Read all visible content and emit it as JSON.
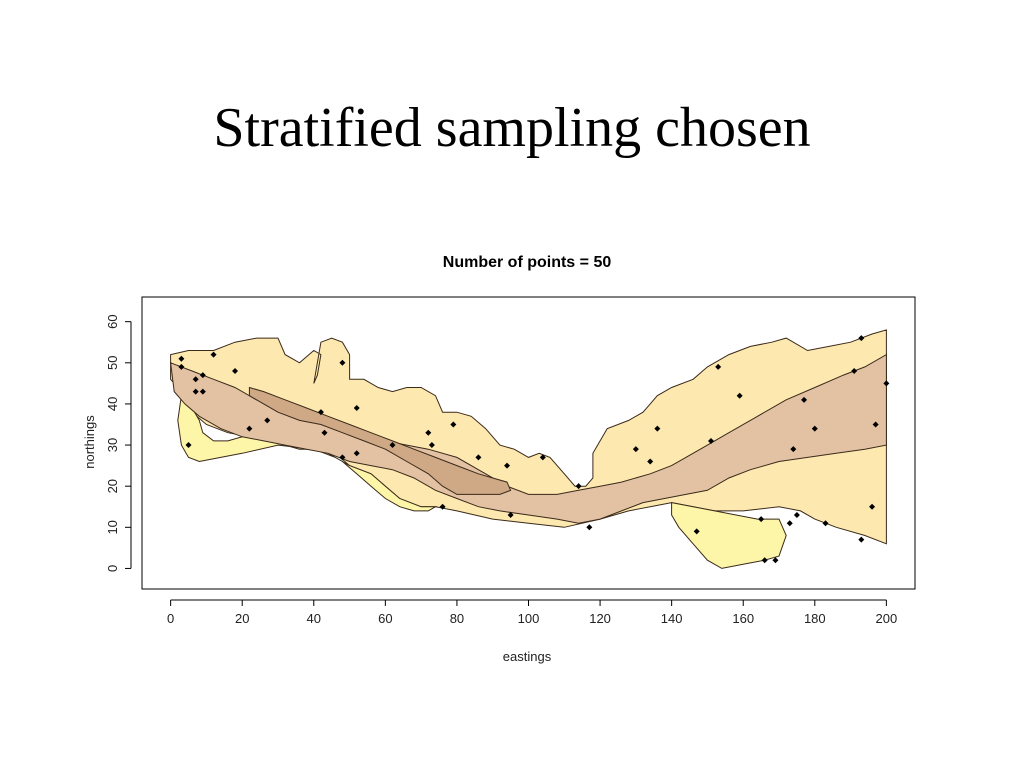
{
  "slide": {
    "title": "Stratified sampling chosen"
  },
  "colors": {
    "stratum_outer": "#fde9b0",
    "stratum_low": "#fdf5a8",
    "stratum_mid": "#e3c2a3",
    "stratum_core": "#cfa886",
    "point": "#000000"
  },
  "chart_data": {
    "type": "scatter",
    "title": "Number of points =  50",
    "xlabel": "eastings",
    "ylabel": "northings",
    "xlim": [
      -8,
      208
    ],
    "ylim": [
      -5,
      66
    ],
    "x_ticks": [
      0,
      20,
      40,
      60,
      80,
      100,
      120,
      140,
      160,
      180,
      200
    ],
    "y_ticks": [
      0,
      10,
      20,
      30,
      40,
      50,
      60
    ],
    "grid": false,
    "strata": [
      {
        "name": "outer",
        "color_key": "stratum_outer",
        "polygon": [
          [
            0,
            52
          ],
          [
            5,
            53
          ],
          [
            12,
            53
          ],
          [
            18,
            55
          ],
          [
            24,
            56
          ],
          [
            30,
            56
          ],
          [
            32,
            52
          ],
          [
            36,
            50
          ],
          [
            40,
            53
          ],
          [
            42,
            52
          ],
          [
            41,
            47
          ],
          [
            40,
            45
          ],
          [
            40,
            45
          ],
          [
            42,
            55
          ],
          [
            45,
            56
          ],
          [
            48,
            55
          ],
          [
            50,
            52
          ],
          [
            50,
            46
          ],
          [
            54,
            46
          ],
          [
            58,
            44
          ],
          [
            62,
            43
          ],
          [
            66,
            44
          ],
          [
            70,
            44
          ],
          [
            74,
            42
          ],
          [
            76,
            38
          ],
          [
            80,
            38
          ],
          [
            84,
            37
          ],
          [
            88,
            34
          ],
          [
            92,
            30
          ],
          [
            96,
            29
          ],
          [
            100,
            27
          ],
          [
            103,
            28
          ],
          [
            106,
            27
          ],
          [
            110,
            23
          ],
          [
            113,
            20
          ],
          [
            116,
            20
          ],
          [
            118,
            22
          ],
          [
            118,
            28
          ],
          [
            122,
            34
          ],
          [
            128,
            36
          ],
          [
            132,
            38
          ],
          [
            134,
            40
          ],
          [
            136,
            42
          ],
          [
            140,
            44
          ],
          [
            146,
            46
          ],
          [
            150,
            49
          ],
          [
            156,
            52
          ],
          [
            162,
            54
          ],
          [
            168,
            55
          ],
          [
            172,
            56
          ],
          [
            178,
            53
          ],
          [
            184,
            54
          ],
          [
            190,
            55
          ],
          [
            196,
            57
          ],
          [
            200,
            58
          ],
          [
            200,
            6
          ],
          [
            194,
            8
          ],
          [
            186,
            10
          ],
          [
            180,
            12
          ],
          [
            176,
            14
          ],
          [
            170,
            15
          ],
          [
            160,
            14
          ],
          [
            152,
            14
          ],
          [
            146,
            15
          ],
          [
            140,
            16
          ],
          [
            134,
            15
          ],
          [
            128,
            14
          ],
          [
            120,
            12
          ],
          [
            110,
            10
          ],
          [
            100,
            11
          ],
          [
            90,
            12
          ],
          [
            80,
            14
          ],
          [
            74,
            15
          ],
          [
            68,
            15
          ],
          [
            64,
            17
          ],
          [
            60,
            20
          ],
          [
            56,
            23
          ],
          [
            50,
            25
          ],
          [
            46,
            28
          ],
          [
            40,
            30
          ],
          [
            34,
            31
          ],
          [
            28,
            32
          ],
          [
            22,
            32
          ],
          [
            16,
            33
          ],
          [
            10,
            35
          ],
          [
            6,
            38
          ],
          [
            4,
            42
          ],
          [
            2,
            44
          ],
          [
            0,
            46
          ]
        ]
      },
      {
        "name": "low",
        "color_key": "stratum_low",
        "polygon": [
          [
            3,
            42
          ],
          [
            6,
            39
          ],
          [
            8,
            36
          ],
          [
            9,
            33
          ],
          [
            12,
            31
          ],
          [
            16,
            31
          ],
          [
            20,
            32
          ],
          [
            24,
            32
          ],
          [
            28,
            31
          ],
          [
            32,
            30
          ],
          [
            36,
            29
          ],
          [
            40,
            29
          ],
          [
            44,
            28
          ],
          [
            48,
            26
          ],
          [
            52,
            23
          ],
          [
            56,
            20
          ],
          [
            60,
            17
          ],
          [
            64,
            15
          ],
          [
            68,
            14
          ],
          [
            72,
            14
          ],
          [
            74,
            15
          ],
          [
            70,
            15
          ],
          [
            64,
            17
          ],
          [
            60,
            20
          ],
          [
            56,
            23
          ],
          [
            50,
            25
          ],
          [
            46,
            27
          ],
          [
            40,
            29
          ],
          [
            30,
            30
          ],
          [
            20,
            28
          ],
          [
            14,
            27
          ],
          [
            8,
            26
          ],
          [
            5,
            27
          ],
          [
            3,
            30
          ],
          [
            2,
            36
          ]
        ]
      },
      {
        "name": "low-east",
        "color_key": "stratum_low",
        "polygon": [
          [
            140,
            16
          ],
          [
            146,
            15
          ],
          [
            152,
            14
          ],
          [
            158,
            13
          ],
          [
            164,
            12
          ],
          [
            170,
            12
          ],
          [
            172,
            8
          ],
          [
            170,
            3
          ],
          [
            166,
            2
          ],
          [
            160,
            1
          ],
          [
            154,
            0
          ],
          [
            150,
            2
          ],
          [
            146,
            6
          ],
          [
            142,
            10
          ],
          [
            140,
            13
          ]
        ]
      },
      {
        "name": "mid",
        "color_key": "stratum_mid",
        "polygon": [
          [
            0,
            50
          ],
          [
            6,
            48
          ],
          [
            12,
            46
          ],
          [
            18,
            44
          ],
          [
            24,
            41
          ],
          [
            30,
            39
          ],
          [
            36,
            38
          ],
          [
            42,
            37
          ],
          [
            48,
            35
          ],
          [
            54,
            33
          ],
          [
            60,
            31
          ],
          [
            66,
            30
          ],
          [
            72,
            29
          ],
          [
            80,
            27
          ],
          [
            88,
            23
          ],
          [
            94,
            20
          ],
          [
            100,
            18
          ],
          [
            108,
            18
          ],
          [
            114,
            19
          ],
          [
            120,
            20
          ],
          [
            126,
            21
          ],
          [
            134,
            23
          ],
          [
            140,
            25
          ],
          [
            148,
            29
          ],
          [
            156,
            33
          ],
          [
            164,
            37
          ],
          [
            172,
            41
          ],
          [
            180,
            44
          ],
          [
            188,
            47
          ],
          [
            194,
            49
          ],
          [
            200,
            52
          ],
          [
            200,
            30
          ],
          [
            194,
            29
          ],
          [
            186,
            28
          ],
          [
            178,
            27
          ],
          [
            170,
            26
          ],
          [
            162,
            24
          ],
          [
            156,
            22
          ],
          [
            150,
            19
          ],
          [
            144,
            18
          ],
          [
            138,
            17
          ],
          [
            132,
            16
          ],
          [
            126,
            14
          ],
          [
            120,
            12
          ],
          [
            114,
            11
          ],
          [
            108,
            12
          ],
          [
            100,
            13
          ],
          [
            92,
            14
          ],
          [
            86,
            15
          ],
          [
            80,
            17
          ],
          [
            74,
            19
          ],
          [
            68,
            22
          ],
          [
            62,
            24
          ],
          [
            56,
            25
          ],
          [
            50,
            26
          ],
          [
            44,
            28
          ],
          [
            38,
            29
          ],
          [
            32,
            30
          ],
          [
            26,
            31
          ],
          [
            20,
            32
          ],
          [
            14,
            34
          ],
          [
            8,
            37
          ],
          [
            4,
            40
          ],
          [
            1,
            43
          ]
        ]
      },
      {
        "name": "core",
        "color_key": "stratum_core",
        "polygon": [
          [
            22,
            44
          ],
          [
            26,
            43
          ],
          [
            32,
            41
          ],
          [
            38,
            39
          ],
          [
            44,
            37
          ],
          [
            50,
            35
          ],
          [
            56,
            33
          ],
          [
            62,
            31
          ],
          [
            68,
            29
          ],
          [
            74,
            27
          ],
          [
            80,
            25
          ],
          [
            86,
            23
          ],
          [
            90,
            22
          ],
          [
            94,
            21
          ],
          [
            95,
            19
          ],
          [
            92,
            18
          ],
          [
            86,
            18
          ],
          [
            80,
            18
          ],
          [
            76,
            20
          ],
          [
            72,
            23
          ],
          [
            66,
            26
          ],
          [
            60,
            29
          ],
          [
            54,
            31
          ],
          [
            48,
            33
          ],
          [
            42,
            35
          ],
          [
            36,
            36
          ],
          [
            30,
            38
          ],
          [
            26,
            40
          ],
          [
            22,
            42
          ]
        ]
      }
    ],
    "points": [
      [
        3,
        51
      ],
      [
        3,
        49
      ],
      [
        5,
        30
      ],
      [
        7,
        46
      ],
      [
        7,
        43
      ],
      [
        9,
        47
      ],
      [
        9,
        43
      ],
      [
        12,
        52
      ],
      [
        18,
        48
      ],
      [
        22,
        34
      ],
      [
        27,
        36
      ],
      [
        42,
        38
      ],
      [
        43,
        33
      ],
      [
        48,
        27
      ],
      [
        48,
        50
      ],
      [
        52,
        39
      ],
      [
        52,
        28
      ],
      [
        62,
        30
      ],
      [
        72,
        33
      ],
      [
        73,
        30
      ],
      [
        76,
        15
      ],
      [
        79,
        35
      ],
      [
        86,
        27
      ],
      [
        94,
        25
      ],
      [
        95,
        13
      ],
      [
        104,
        27
      ],
      [
        114,
        20
      ],
      [
        117,
        10
      ],
      [
        130,
        29
      ],
      [
        134,
        26
      ],
      [
        136,
        34
      ],
      [
        147,
        9
      ],
      [
        151,
        31
      ],
      [
        153,
        49
      ],
      [
        159,
        42
      ],
      [
        165,
        12
      ],
      [
        166,
        2
      ],
      [
        169,
        2
      ],
      [
        173,
        11
      ],
      [
        174,
        29
      ],
      [
        175,
        13
      ],
      [
        177,
        41
      ],
      [
        180,
        34
      ],
      [
        183,
        11
      ],
      [
        191,
        48
      ],
      [
        193,
        7
      ],
      [
        193,
        56
      ],
      [
        196,
        15
      ],
      [
        197,
        35
      ],
      [
        200,
        45
      ]
    ]
  }
}
